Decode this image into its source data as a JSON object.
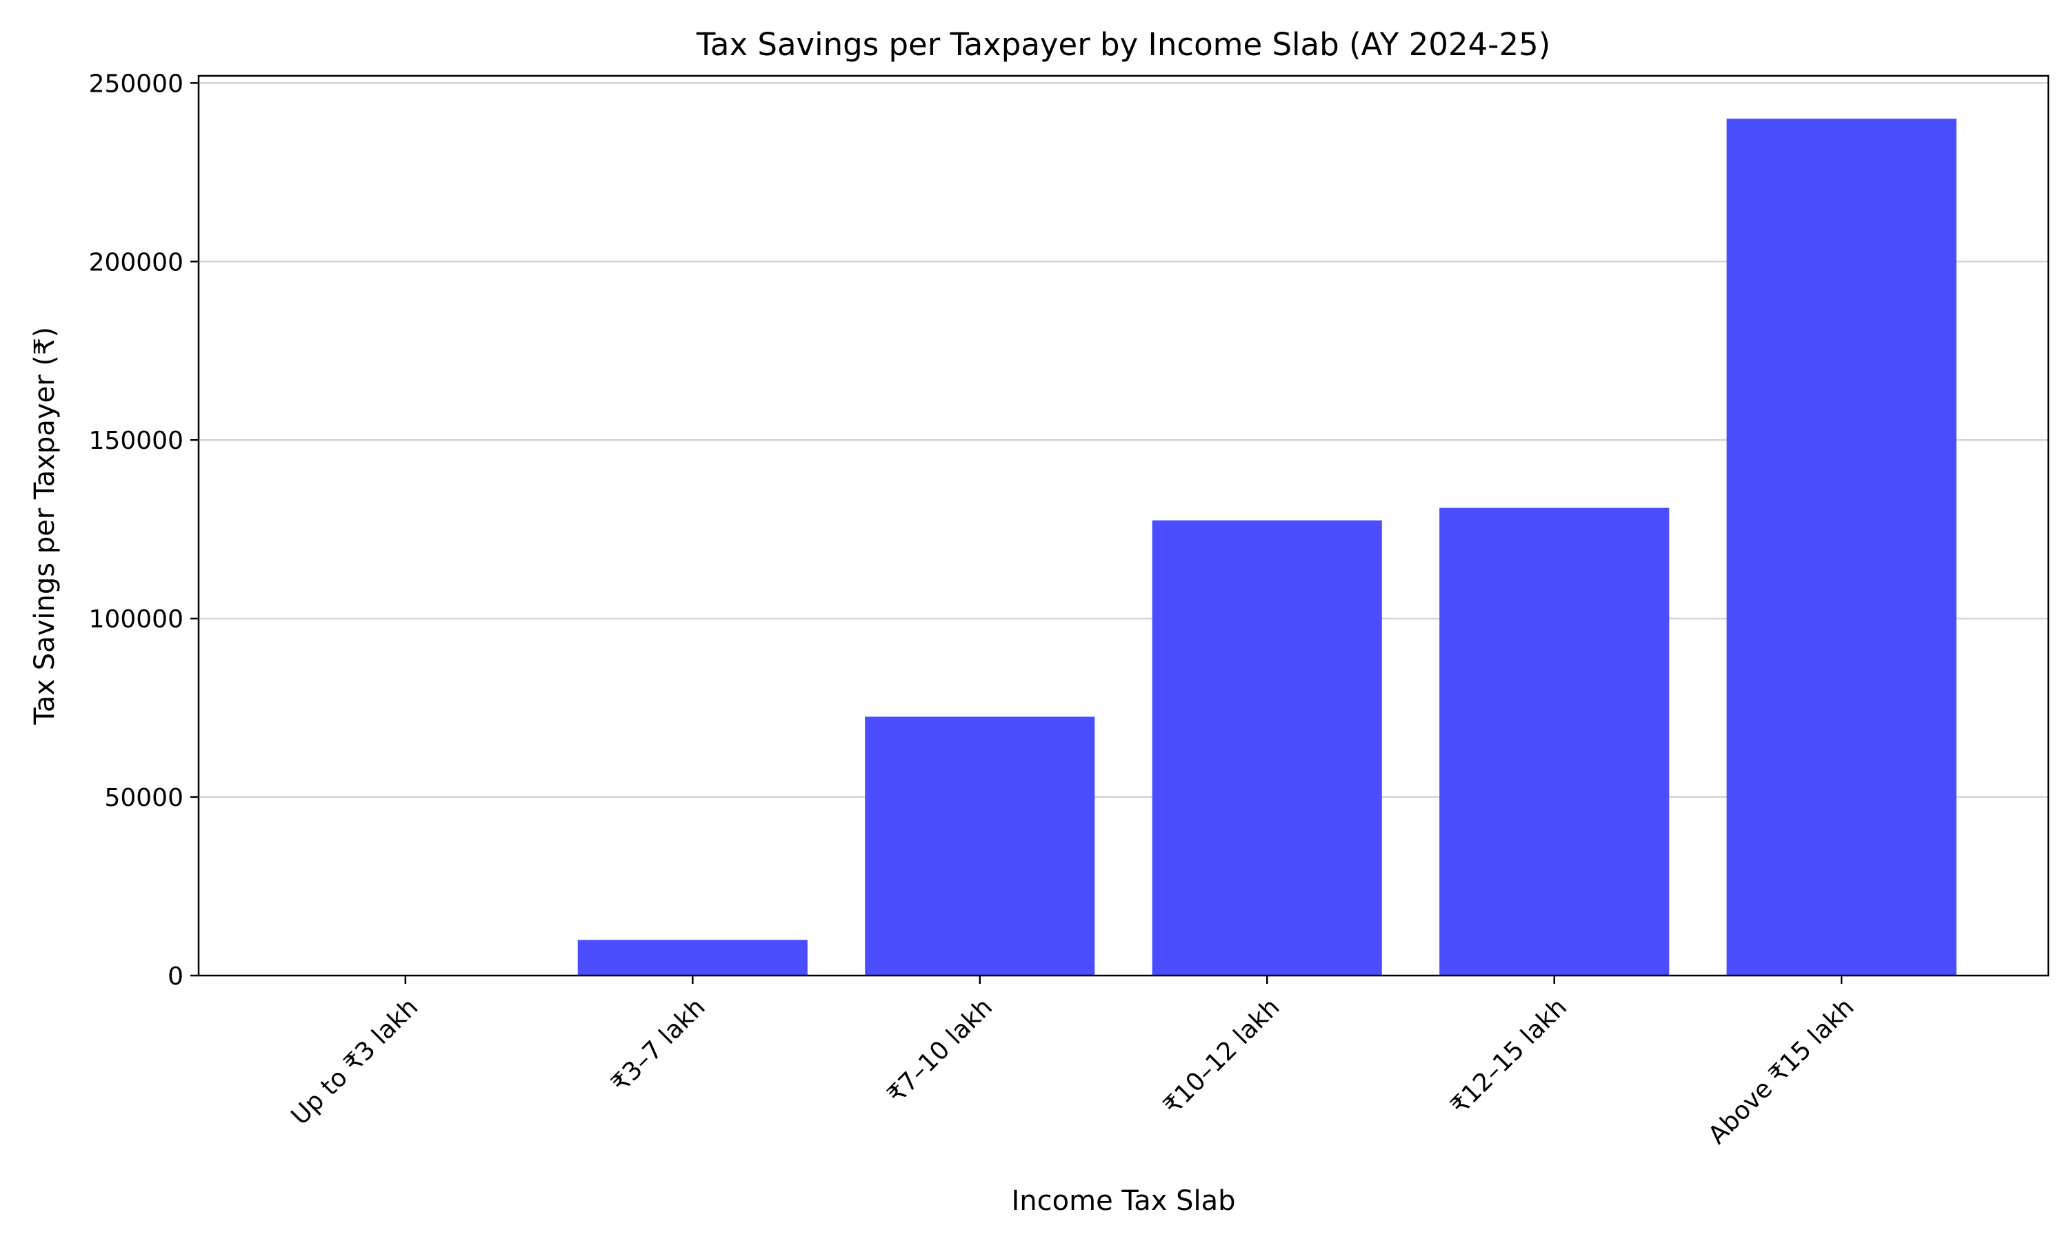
{
  "chart_data": {
    "type": "bar",
    "title": "Tax Savings per Taxpayer by Income Slab (AY 2024-25)",
    "xlabel": "Income Tax Slab",
    "ylabel": "Tax Savings per Taxpayer (₹)",
    "categories": [
      "Up to ₹3 lakh",
      "₹3–7 lakh",
      "₹7–10 lakh",
      "₹10–12 lakh",
      "₹12–15 lakh",
      "Above ₹15 lakh"
    ],
    "values": [
      0,
      10000,
      72500,
      127500,
      131000,
      240000
    ],
    "ylim": [
      0,
      252000
    ],
    "yticks": [
      0,
      50000,
      100000,
      150000,
      200000,
      250000
    ],
    "ytick_labels": [
      "0",
      "50000",
      "100000",
      "150000",
      "200000",
      "250000"
    ],
    "grid": "y",
    "legend": "none",
    "bar_color": "#4b4eff",
    "grid_color": "#d3d3d3"
  }
}
